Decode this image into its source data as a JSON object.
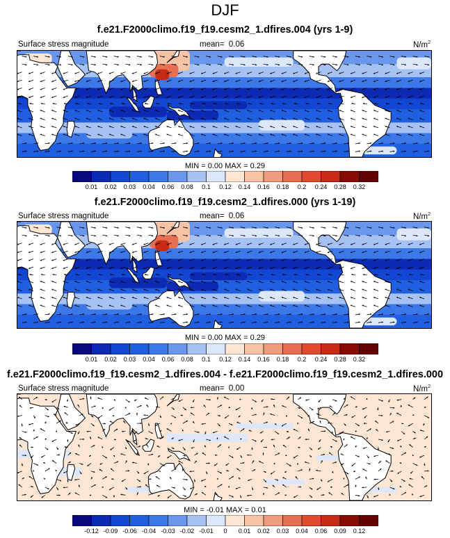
{
  "season": "DJF",
  "panels": [
    {
      "title": "f.e21.F2000climo.f19_f19.cesm2_1.dfires.004 (yrs 1-9)",
      "left_label": "Surface stress magnitude",
      "mean_label": "mean=",
      "mean_value": "0.06",
      "units": "N/m",
      "units_sup": "2",
      "min_label": "MIN =",
      "min_value": "0.00",
      "max_label": "MAX =",
      "max_value": "0.29",
      "colorbar_labels": [
        "0.01",
        "0.02",
        "0.03",
        "0.04",
        "0.06",
        "0.08",
        "0.1",
        "0.12",
        "0.14",
        "0.16",
        "0.18",
        "0.2",
        "0.24",
        "0.28",
        "0.32"
      ],
      "kind": "abs"
    },
    {
      "title": "f.e21.F2000climo.f19_f19.cesm2_1.dfires.000 (yrs 1-19)",
      "left_label": "Surface stress magnitude",
      "mean_label": "mean=",
      "mean_value": "0.06",
      "units": "N/m",
      "units_sup": "2",
      "min_label": "MIN =",
      "min_value": "0.00",
      "max_label": "MAX =",
      "max_value": "0.29",
      "colorbar_labels": [
        "0.01",
        "0.02",
        "0.03",
        "0.04",
        "0.06",
        "0.08",
        "0.1",
        "0.12",
        "0.14",
        "0.16",
        "0.18",
        "0.2",
        "0.24",
        "0.28",
        "0.32"
      ],
      "kind": "abs"
    },
    {
      "title": "f.e21.F2000climo.f19_f19.cesm2_1.dfires.004 - f.e21.F2000climo.f19_f19.cesm2_1.dfires.000",
      "left_label": "Surface stress magnitude",
      "mean_label": "mean=",
      "mean_value": "0.00",
      "units": "N/m",
      "units_sup": "2",
      "min_label": "MIN =",
      "min_value": "-0.01",
      "max_label": "MAX =",
      "max_value": "0.01",
      "colorbar_labels": [
        "-0.12",
        "-0.09",
        "-0.06",
        "-0.04",
        "-0.03",
        "-0.02",
        "-0.01",
        "0",
        "0.01",
        "0.02",
        "0.03",
        "0.04",
        "0.06",
        "0.09",
        "0.12"
      ],
      "kind": "diff"
    }
  ],
  "colors": {
    "abs_palette": [
      "#08087f",
      "#0c2ab2",
      "#1147d2",
      "#2060e0",
      "#3c78e8",
      "#6a97ee",
      "#a6c2f4",
      "#dce8fa",
      "#fde6d3",
      "#f7c3a6",
      "#f09c7c",
      "#e87052",
      "#e24a2d",
      "#c82a14",
      "#8a0b00",
      "#660000"
    ],
    "diff_palette": [
      "#08087f",
      "#0c2ab2",
      "#1147d2",
      "#2060e0",
      "#3c78e8",
      "#6a97ee",
      "#a6c2f4",
      "#dce8fa",
      "#fde6d3",
      "#f7c3a6",
      "#f09c7c",
      "#e87052",
      "#e24a2d",
      "#c82a14",
      "#8a0b00",
      "#660000"
    ],
    "land": "#ffffff",
    "coast": "#000000"
  },
  "chart_data": [
    {
      "type": "heatmap",
      "title": "f.e21.F2000climo.f19_f19.cesm2_1.dfires.004 (yrs 1-9)",
      "variable": "Surface stress magnitude",
      "units": "N/m2",
      "season": "DJF",
      "mean": 0.06,
      "min": 0.0,
      "max": 0.29,
      "contour_levels": [
        0.01,
        0.02,
        0.03,
        0.04,
        0.06,
        0.08,
        0.1,
        0.12,
        0.14,
        0.16,
        0.18,
        0.2,
        0.24,
        0.28,
        0.32
      ],
      "overlay": "wind stress vectors"
    },
    {
      "type": "heatmap",
      "title": "f.e21.F2000climo.f19_f19.cesm2_1.dfires.000 (yrs 1-19)",
      "variable": "Surface stress magnitude",
      "units": "N/m2",
      "season": "DJF",
      "mean": 0.06,
      "min": 0.0,
      "max": 0.29,
      "contour_levels": [
        0.01,
        0.02,
        0.03,
        0.04,
        0.06,
        0.08,
        0.1,
        0.12,
        0.14,
        0.16,
        0.18,
        0.2,
        0.24,
        0.28,
        0.32
      ],
      "overlay": "wind stress vectors"
    },
    {
      "type": "heatmap",
      "title": "f.e21.F2000climo.f19_f19.cesm2_1.dfires.004 - f.e21.F2000climo.f19_f19.cesm2_1.dfires.000",
      "variable": "Surface stress magnitude",
      "units": "N/m2",
      "season": "DJF",
      "mean": 0.0,
      "min": -0.01,
      "max": 0.01,
      "contour_levels": [
        -0.12,
        -0.09,
        -0.06,
        -0.04,
        -0.03,
        -0.02,
        -0.01,
        0,
        0.01,
        0.02,
        0.03,
        0.04,
        0.06,
        0.09,
        0.12
      ],
      "overlay": "wind stress difference vectors"
    }
  ]
}
